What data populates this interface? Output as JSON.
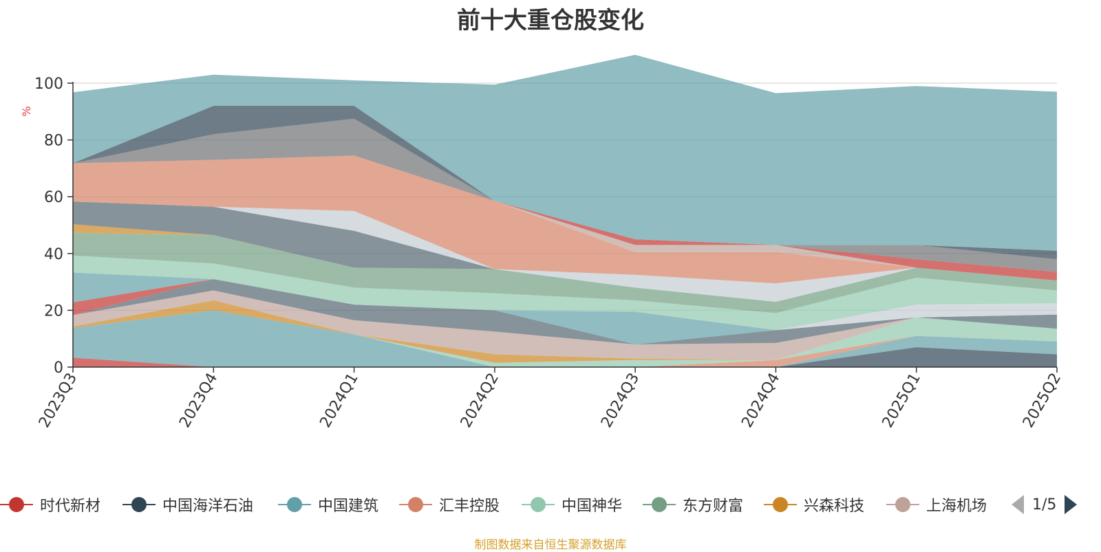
{
  "title": "前十大重仓股变化",
  "source_note": "制图数据来自恒生聚源数据库",
  "legend_page": "1/5",
  "chart_data": {
    "type": "area",
    "stacked": true,
    "title": "前十大重仓股变化",
    "ylabel": "%",
    "ylim": [
      0,
      100
    ],
    "yticks": [
      0,
      20,
      40,
      60,
      80,
      100
    ],
    "categories": [
      "2023Q3",
      "2023Q4",
      "2024Q1",
      "2024Q2",
      "2024Q3",
      "2024Q4",
      "2025Q1",
      "2025Q2"
    ],
    "grid": true,
    "legend_position": "bottom",
    "series": [
      {
        "name": "时代新材",
        "color": "#c23531",
        "values": [
          3.3,
          0,
          0,
          0,
          0,
          0,
          0,
          0
        ]
      },
      {
        "name": "中国海洋石油",
        "color": "#2f4554",
        "values": [
          0,
          0,
          0,
          0,
          0,
          0,
          7.0,
          4.5
        ]
      },
      {
        "name": "中国建筑",
        "color": "#61a0a8",
        "values": [
          10.5,
          20.0,
          11.5,
          0,
          0,
          0,
          4.0,
          4.5
        ]
      },
      {
        "name": "汇丰控股",
        "color": "#d48265",
        "values": [
          0,
          0,
          0,
          0,
          0,
          2.5,
          0,
          0
        ]
      },
      {
        "name": "中国神华",
        "color": "#91c7ae",
        "values": [
          0,
          0,
          0,
          1.5,
          2.5,
          0,
          6.5,
          4.5
        ]
      },
      {
        "name": "东方财富",
        "color": "#749f83",
        "values": [
          0,
          0,
          0,
          0,
          0,
          0,
          0,
          0
        ]
      },
      {
        "name": "兴森科技",
        "color": "#ca8622",
        "values": [
          0.5,
          3.5,
          0,
          3.0,
          0.5,
          0,
          0,
          0
        ]
      },
      {
        "name": "上海机场",
        "color": "#bda29a",
        "values": [
          4.0,
          3.5,
          5.0,
          8.0,
          5.0,
          6.0,
          0,
          0
        ]
      },
      {
        "name": "",
        "color": "#6e7074",
        "values": [
          0,
          0,
          0,
          0,
          0,
          0,
          0,
          0
        ]
      },
      {
        "name": "",
        "color": "#546570",
        "values": [
          0,
          4.0,
          5.5,
          7.5,
          0,
          4.5,
          0,
          5.0
        ]
      },
      {
        "name": "",
        "color": "#c4ccd3",
        "values": [
          0,
          0,
          0,
          0,
          0,
          0,
          4.5,
          4.0
        ]
      },
      {
        "name": "",
        "color": "#c23531",
        "values": [
          4.5,
          0,
          0,
          0,
          0,
          0,
          0,
          0
        ]
      },
      {
        "name": "",
        "color": "#61a0a8",
        "values": [
          10.5,
          0,
          0,
          0,
          11.5,
          0,
          0,
          0
        ]
      },
      {
        "name": "",
        "color": "#91c7ae",
        "values": [
          6.0,
          5.5,
          6.0,
          6.0,
          4.0,
          6.0,
          9.5,
          4.5
        ]
      },
      {
        "name": "",
        "color": "#749f83",
        "values": [
          8.0,
          10.0,
          7.0,
          8.5,
          4.5,
          4.0,
          3.5,
          3.5
        ]
      },
      {
        "name": "",
        "color": "#ca8622",
        "values": [
          3.0,
          0,
          0,
          0,
          0,
          0,
          0,
          0
        ]
      },
      {
        "name": "",
        "color": "#546570",
        "values": [
          8.0,
          10.0,
          13.0,
          0,
          0,
          0,
          0,
          0
        ]
      },
      {
        "name": "",
        "color": "#c4ccd3",
        "values": [
          0,
          0,
          7.0,
          0,
          4.5,
          6.5,
          0,
          0
        ]
      },
      {
        "name": "",
        "color": "#d48265",
        "values": [
          13.5,
          16.5,
          19.5,
          24.0,
          8.0,
          11.0,
          0,
          0
        ]
      },
      {
        "name": "",
        "color": "#bda29a",
        "values": [
          0,
          0,
          0,
          0,
          2.5,
          2.5,
          0,
          0
        ]
      },
      {
        "name": "",
        "color": "#c23531",
        "values": [
          0,
          0,
          0,
          0,
          2.0,
          0,
          3.0,
          3.0
        ]
      },
      {
        "name": "",
        "color": "#6e7074",
        "values": [
          0,
          9.0,
          13.0,
          0,
          0,
          0,
          5.0,
          4.5
        ]
      },
      {
        "name": "",
        "color": "#2f4554",
        "values": [
          0,
          10.0,
          4.5,
          0,
          0,
          0,
          0,
          3.0
        ]
      },
      {
        "name": "",
        "color": "#61a0a8",
        "values": [
          25.0,
          11.0,
          9.0,
          41.0,
          65.0,
          53.5,
          56.0,
          56.0
        ]
      }
    ]
  }
}
